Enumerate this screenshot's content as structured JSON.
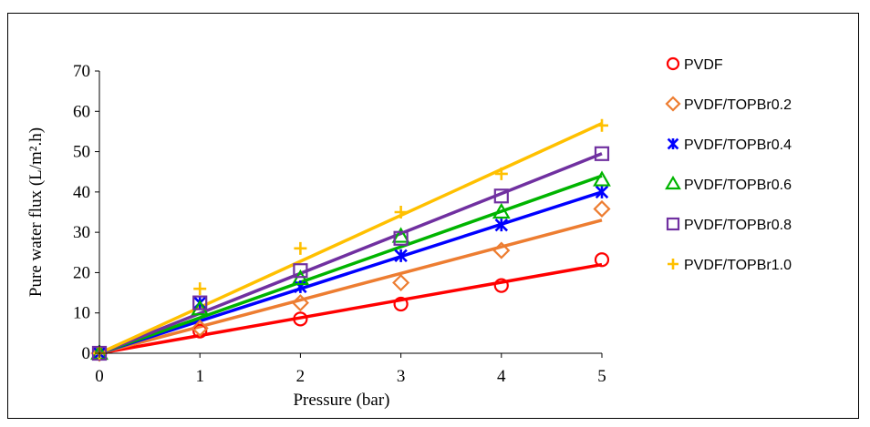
{
  "chart_data": {
    "type": "scatter",
    "title": "",
    "xlabel": "Pressure (bar)",
    "ylabel": "Pure water flux (L/m².h)",
    "xlim": [
      0,
      5
    ],
    "ylim": [
      0,
      70
    ],
    "xticks": [
      0,
      1,
      2,
      3,
      4,
      5
    ],
    "yticks": [
      0,
      10,
      20,
      30,
      40,
      50,
      60,
      70
    ],
    "grid": false,
    "legend_position": "right",
    "series": [
      {
        "name": "PVDF",
        "color": "#ff0000",
        "marker": "circle",
        "x": [
          0,
          1,
          2,
          3,
          4,
          5
        ],
        "y": [
          0,
          5.5,
          8.5,
          12.2,
          16.8,
          23.2
        ],
        "fit": [
          [
            0,
            0
          ],
          [
            5,
            22
          ]
        ]
      },
      {
        "name": "PVDF/TOPBr0.2",
        "color": "#ed7d31",
        "marker": "diamond",
        "x": [
          0,
          1,
          2,
          3,
          4,
          5
        ],
        "y": [
          0,
          6.2,
          12.5,
          17.5,
          25.5,
          35.8
        ],
        "fit": [
          [
            0,
            0
          ],
          [
            5,
            33
          ]
        ]
      },
      {
        "name": "PVDF/TOPBr0.4",
        "color": "#0000ff",
        "marker": "asterisk",
        "x": [
          0,
          1,
          2,
          3,
          4,
          5
        ],
        "y": [
          0,
          12.5,
          16.5,
          24.2,
          31.8,
          40
        ],
        "fit": [
          [
            0,
            0
          ],
          [
            5,
            40
          ]
        ]
      },
      {
        "name": "PVDF/TOPBr0.6",
        "color": "#00b400",
        "marker": "triangle",
        "x": [
          0,
          1,
          2,
          3,
          4,
          5
        ],
        "y": [
          0,
          11,
          18.5,
          29,
          35,
          43
        ],
        "fit": [
          [
            0,
            0
          ],
          [
            5,
            44
          ]
        ]
      },
      {
        "name": "PVDF/TOPBr0.8",
        "color": "#7030a0",
        "marker": "square",
        "x": [
          0,
          1,
          2,
          3,
          4,
          5
        ],
        "y": [
          0,
          12.5,
          20.5,
          28.5,
          39,
          49.5
        ],
        "fit": [
          [
            0,
            0
          ],
          [
            5,
            49.5
          ]
        ]
      },
      {
        "name": "PVDF/TOPBr1.0",
        "color": "#ffc000",
        "marker": "plus",
        "x": [
          0,
          1,
          2,
          3,
          4,
          5
        ],
        "y": [
          0,
          16,
          26,
          35,
          44.5,
          56.5
        ],
        "fit": [
          [
            0,
            0
          ],
          [
            5,
            57
          ]
        ]
      }
    ]
  }
}
